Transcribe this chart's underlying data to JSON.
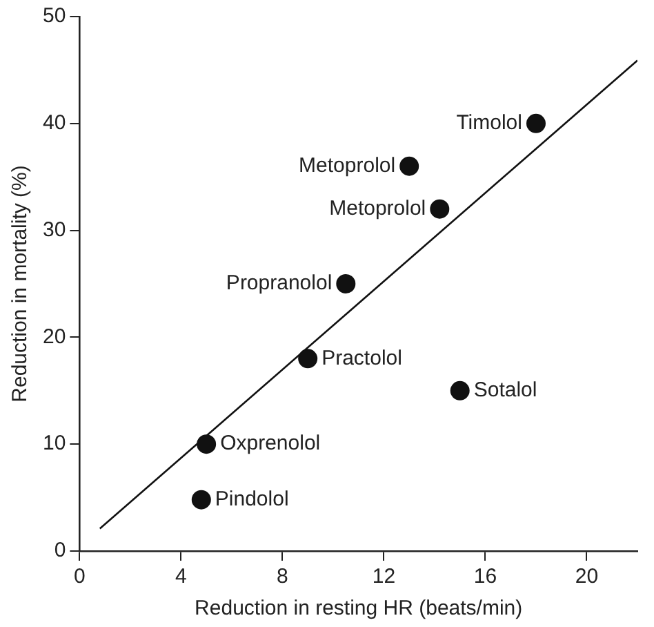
{
  "chart_data": {
    "type": "scatter",
    "xlabel": "Reduction in resting HR (beats/min)",
    "ylabel": "Reduction in mortality (%)",
    "xlim": [
      0,
      22
    ],
    "xticks": [
      0,
      4,
      8,
      12,
      16,
      20
    ],
    "ylim": [
      0,
      50
    ],
    "yticks": [
      0,
      10,
      20,
      30,
      40,
      50
    ],
    "grid": false,
    "legend": false,
    "series": [
      {
        "type": "scatter",
        "color": "#111111",
        "marker": "circle",
        "x": [
          18,
          13,
          14.2,
          10.5,
          9,
          15,
          5,
          4.8
        ],
        "values": [
          40,
          36,
          32,
          25,
          18,
          15,
          10,
          4.8
        ]
      },
      {
        "type": "line",
        "color": "#111111",
        "marker": "none",
        "x": [
          0.8,
          22
        ],
        "values": [
          2.1,
          45.9
        ]
      }
    ],
    "annotations": [
      {
        "text": "Timolol",
        "x": 18,
        "y": 40
      },
      {
        "text": "Metoprolol",
        "x": 13,
        "y": 36
      },
      {
        "text": "Metoprolol",
        "x": 14.2,
        "y": 32
      },
      {
        "text": "Propranolol",
        "x": 10.5,
        "y": 25
      },
      {
        "text": "Practolol",
        "x": 9,
        "y": 18
      },
      {
        "text": "Sotalol",
        "x": 15,
        "y": 15
      },
      {
        "text": "Oxprenolol",
        "x": 5,
        "y": 10
      },
      {
        "text": "Pindolol",
        "x": 4.8,
        "y": 4.8
      }
    ]
  }
}
